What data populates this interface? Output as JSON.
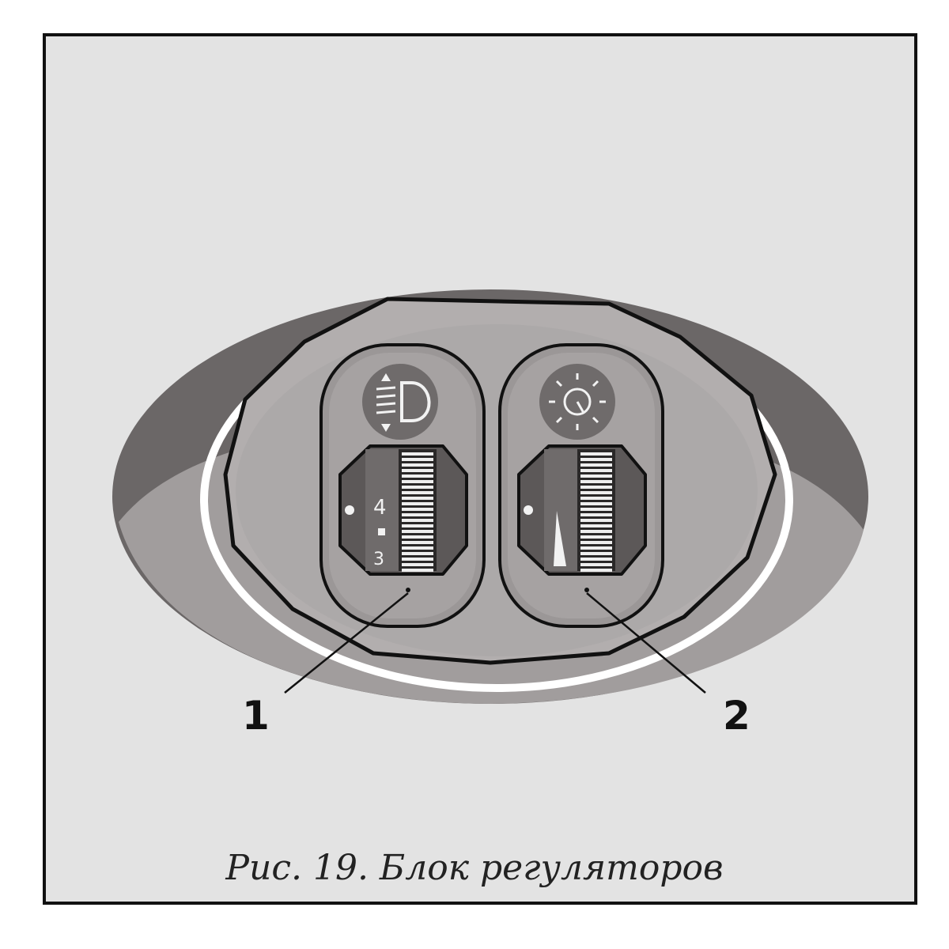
{
  "figure": {
    "caption": "Рис. 19. Блок регуляторов",
    "callouts": [
      "1",
      "2"
    ]
  },
  "left_control": {
    "icon": "headlight-leveling-icon",
    "scale_marks": [
      "4",
      "3"
    ]
  },
  "right_control": {
    "icon": "panel-illumination-icon"
  },
  "colors": {
    "background": "#e3e3e3",
    "panel_dark": "#6e6a6a",
    "panel_mid": "#a8a4a4",
    "outline": "#111111"
  }
}
